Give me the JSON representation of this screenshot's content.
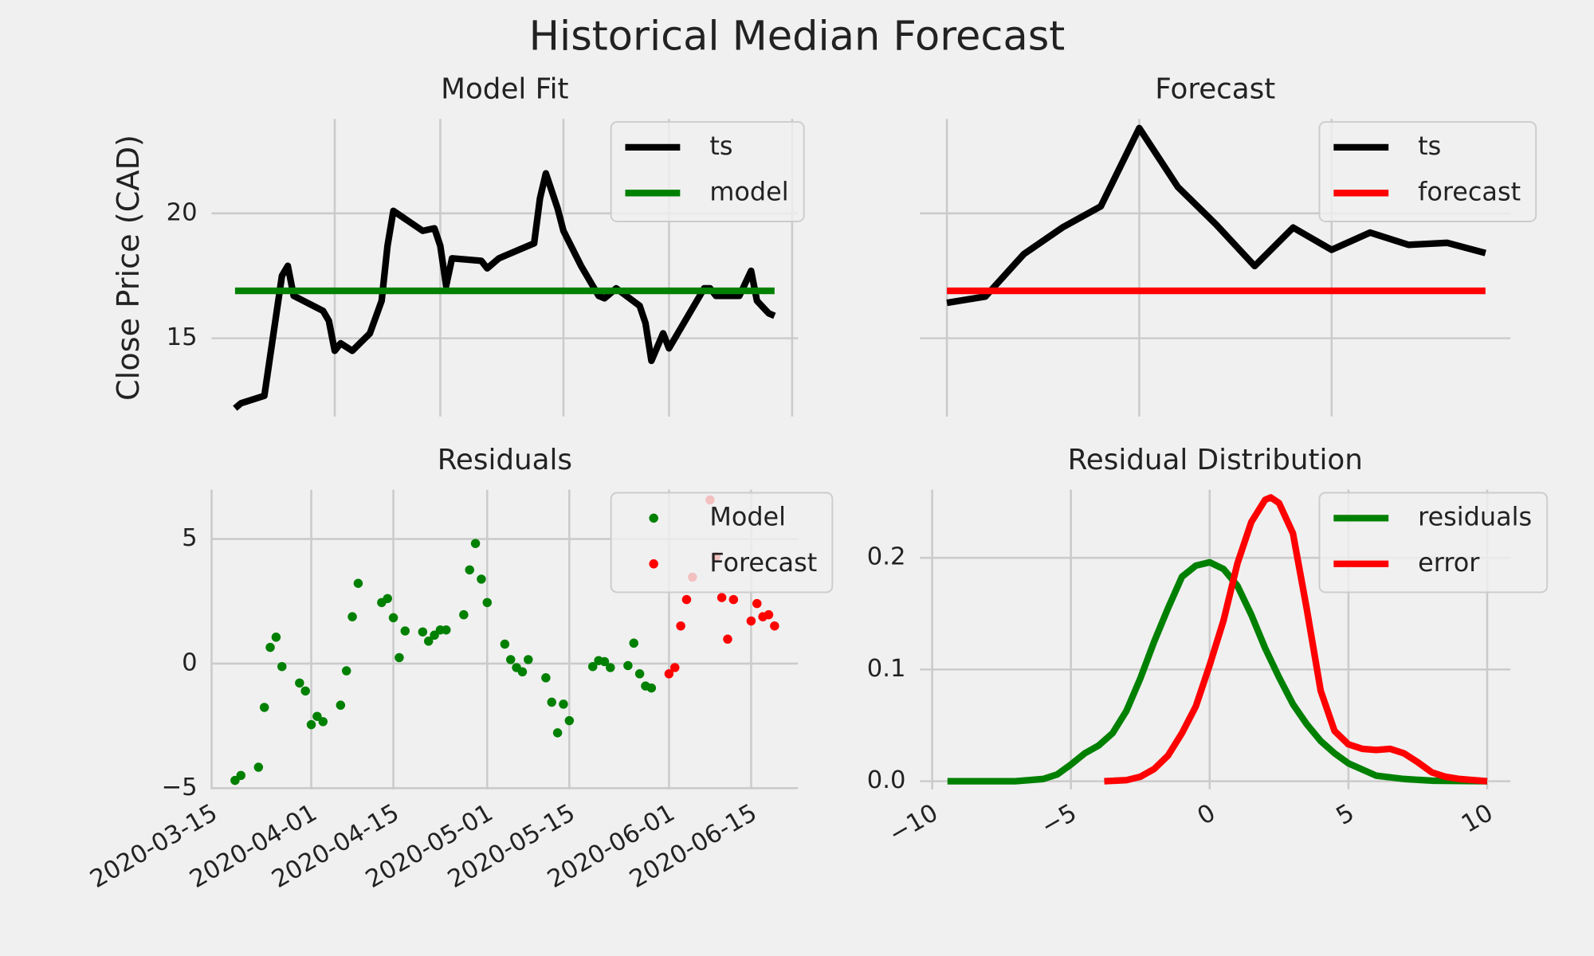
{
  "title": "Historical Median Forecast",
  "chart_data": [
    {
      "type": "line",
      "title": "Model Fit",
      "ylabel": "Close Price (CAD)",
      "xlim": [
        "2020-03-15",
        "2020-06-23"
      ],
      "xticks": [
        "2020-04-05",
        "2020-04-23",
        "2020-05-14",
        "2020-06-01",
        "2020-06-22"
      ],
      "xtick_labels": false,
      "ylim": [
        11.87,
        23.78
      ],
      "yticks": [
        15,
        20
      ],
      "grid": true,
      "legend": "upper right",
      "series": [
        {
          "name": "ts",
          "color": "#000000",
          "x": [
            "2020-03-19",
            "2020-03-20",
            "2020-03-24",
            "2020-03-27",
            "2020-03-28",
            "2020-03-29",
            "2020-04-03",
            "2020-04-04",
            "2020-04-05",
            "2020-04-06",
            "2020-04-08",
            "2020-04-11",
            "2020-04-13",
            "2020-04-14",
            "2020-04-15",
            "2020-04-20",
            "2020-04-22",
            "2020-04-23",
            "2020-04-24",
            "2020-04-25",
            "2020-04-30",
            "2020-05-01",
            "2020-05-03",
            "2020-05-04",
            "2020-05-09",
            "2020-05-10",
            "2020-05-11",
            "2020-05-13",
            "2020-05-14",
            "2020-05-17",
            "2020-05-20",
            "2020-05-21",
            "2020-05-23",
            "2020-05-27",
            "2020-05-28",
            "2020-05-29",
            "2020-05-31",
            "2020-06-01",
            "2020-06-07",
            "2020-06-08",
            "2020-06-09",
            "2020-06-13",
            "2020-06-15",
            "2020-06-16",
            "2020-06-18",
            "2020-06-19"
          ],
          "values": [
            12.2,
            12.4,
            12.7,
            17.5,
            17.9,
            16.7,
            16.1,
            15.7,
            14.5,
            14.8,
            14.5,
            15.2,
            16.5,
            18.7,
            20.1,
            19.3,
            19.4,
            18.7,
            17.1,
            18.2,
            18.1,
            17.8,
            18.2,
            18.3,
            18.8,
            20.6,
            21.6,
            20.2,
            19.3,
            17.9,
            16.7,
            16.6,
            17.0,
            16.3,
            15.6,
            14.1,
            15.2,
            14.6,
            17.0,
            17.0,
            16.7,
            16.7,
            17.7,
            16.5,
            16.0,
            15.9
          ]
        },
        {
          "name": "model",
          "color": "#008000",
          "x": [
            "2020-03-19",
            "2020-06-19"
          ],
          "values": [
            16.9,
            16.9
          ]
        }
      ]
    },
    {
      "type": "line",
      "title": "Forecast",
      "xlim": [
        -0.7,
        14.65
      ],
      "xticks": [
        0,
        5,
        10
      ],
      "xtick_labels": false,
      "ylim": [
        11.87,
        23.78
      ],
      "yticks": [
        15,
        20
      ],
      "ytick_labels": false,
      "grid": true,
      "legend": "upper right",
      "x": [
        0,
        1,
        2,
        3,
        4,
        5,
        6,
        7,
        8,
        9,
        10,
        11,
        12,
        13,
        14
      ],
      "series": [
        {
          "name": "ts",
          "color": "#000000",
          "values": [
            16.42,
            16.67,
            18.37,
            19.43,
            20.28,
            23.41,
            21.06,
            19.55,
            17.89,
            19.43,
            18.54,
            19.23,
            18.74,
            18.82,
            18.41
          ]
        },
        {
          "name": "forecast",
          "color": "#ff0000",
          "values": [
            16.9,
            16.9,
            16.9,
            16.9,
            16.9,
            16.9,
            16.9,
            16.9,
            16.9,
            16.9,
            16.9,
            16.9,
            16.9,
            16.9,
            16.9
          ]
        }
      ]
    },
    {
      "type": "scatter",
      "title": "Residuals",
      "xlim": [
        "2020-03-15",
        "2020-06-23"
      ],
      "xticks": [
        "2020-03-15",
        "2020-04-01",
        "2020-04-15",
        "2020-05-01",
        "2020-05-15",
        "2020-06-01",
        "2020-06-15"
      ],
      "ylim": [
        -5.05,
        6.98
      ],
      "yticks": [
        {
          "value": -5,
          "label": "−5"
        },
        0,
        5
      ],
      "grid": true,
      "legend": "upper right",
      "series": [
        {
          "name": "Model",
          "color": "#008000",
          "x": [
            "2020-03-19",
            "2020-03-20",
            "2020-03-23",
            "2020-03-24",
            "2020-03-25",
            "2020-03-26",
            "2020-03-27",
            "2020-03-30",
            "2020-03-31",
            "2020-04-01",
            "2020-04-02",
            "2020-04-03",
            "2020-04-06",
            "2020-04-07",
            "2020-04-08",
            "2020-04-09",
            "2020-04-13",
            "2020-04-14",
            "2020-04-15",
            "2020-04-16",
            "2020-04-17",
            "2020-04-20",
            "2020-04-21",
            "2020-04-22",
            "2020-04-23",
            "2020-04-24",
            "2020-04-27",
            "2020-04-28",
            "2020-04-29",
            "2020-04-30",
            "2020-05-01",
            "2020-05-04",
            "2020-05-05",
            "2020-05-06",
            "2020-05-07",
            "2020-05-08",
            "2020-05-11",
            "2020-05-12",
            "2020-05-13",
            "2020-05-14",
            "2020-05-15",
            "2020-05-19",
            "2020-05-20",
            "2020-05-21",
            "2020-05-22",
            "2020-05-25",
            "2020-05-26",
            "2020-05-27",
            "2020-05-28",
            "2020-05-29"
          ],
          "values": [
            -4.69,
            -4.49,
            -4.16,
            -1.76,
            0.65,
            1.06,
            -0.12,
            -0.78,
            -1.1,
            -2.45,
            -2.12,
            -2.33,
            -1.67,
            -0.29,
            1.88,
            3.22,
            2.45,
            2.61,
            1.84,
            0.24,
            1.31,
            1.27,
            0.9,
            1.14,
            1.35,
            1.35,
            1.96,
            3.76,
            4.82,
            3.39,
            2.45,
            0.78,
            0.16,
            -0.16,
            -0.33,
            0.16,
            -0.57,
            -1.55,
            -2.78,
            -1.63,
            -2.29,
            -0.12,
            0.12,
            0.08,
            -0.16,
            -0.08,
            0.82,
            -0.41,
            -0.9,
            -0.98
          ]
        },
        {
          "name": "Forecast",
          "color": "#ff0000",
          "x": [
            "2020-06-01",
            "2020-06-02",
            "2020-06-03",
            "2020-06-04",
            "2020-06-05",
            "2020-06-08",
            "2020-06-09",
            "2020-06-10",
            "2020-06-11",
            "2020-06-12",
            "2020-06-15",
            "2020-06-16",
            "2020-06-17",
            "2020-06-18",
            "2020-06-19"
          ],
          "values": [
            -0.41,
            -0.16,
            1.51,
            2.57,
            3.47,
            6.57,
            4.29,
            2.65,
            0.98,
            2.57,
            1.71,
            2.41,
            1.88,
            1.96,
            1.51
          ]
        }
      ]
    },
    {
      "type": "line",
      "title": "Residual Distribution",
      "xlim": [
        -10.44,
        10.84
      ],
      "xticks": [
        {
          "value": -10,
          "label": "−10"
        },
        {
          "value": -5,
          "label": "−5"
        },
        0,
        5,
        10
      ],
      "ylim": [
        -0.0073,
        0.261
      ],
      "yticks": [
        {
          "value": 0,
          "label": "0.0"
        },
        0.1,
        0.2
      ],
      "grid": true,
      "legend": "upper right",
      "series": [
        {
          "name": "residuals",
          "color": "#008000",
          "x": [
            -9.45,
            -7,
            -6,
            -5.5,
            -5,
            -4.5,
            -4,
            -3.5,
            -3,
            -2.5,
            -2,
            -1.5,
            -1,
            -0.5,
            0,
            0.5,
            1,
            1.5,
            2,
            2.5,
            3,
            3.5,
            4,
            4.5,
            5,
            6,
            7,
            8,
            10
          ],
          "values": [
            0,
            0,
            0.002,
            0.006,
            0.015,
            0.025,
            0.032,
            0.043,
            0.063,
            0.092,
            0.125,
            0.155,
            0.183,
            0.193,
            0.196,
            0.19,
            0.175,
            0.149,
            0.119,
            0.093,
            0.069,
            0.051,
            0.036,
            0.025,
            0.016,
            0.005,
            0.002,
            0.0005,
            0
          ]
        },
        {
          "name": "error",
          "color": "#ff0000",
          "x": [
            -3.8,
            -3,
            -2.5,
            -2,
            -1.5,
            -1,
            -0.5,
            0,
            0.5,
            1,
            1.5,
            2,
            2.2,
            2.5,
            3,
            3.5,
            4,
            4.5,
            5,
            5.5,
            6,
            6.5,
            7,
            7.5,
            8,
            8.5,
            9,
            10
          ],
          "values": [
            0,
            0.001,
            0.004,
            0.011,
            0.023,
            0.043,
            0.067,
            0.104,
            0.144,
            0.195,
            0.232,
            0.252,
            0.254,
            0.249,
            0.222,
            0.154,
            0.081,
            0.045,
            0.033,
            0.029,
            0.028,
            0.029,
            0.025,
            0.017,
            0.008,
            0.004,
            0.002,
            0
          ]
        }
      ]
    }
  ]
}
